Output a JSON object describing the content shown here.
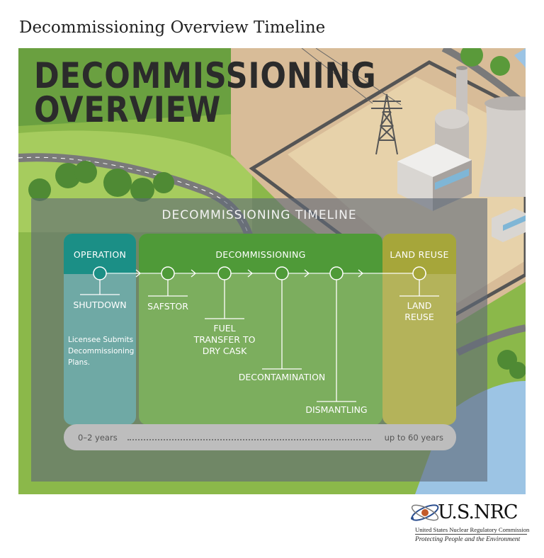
{
  "page_title": "Decommissioning Overview Timeline",
  "hero": {
    "line1": "DECOMMISSIONING",
    "line2": "OVERVIEW"
  },
  "timeline": {
    "title": "DECOMMISSIONING TIMELINE",
    "phases": {
      "operation": "OPERATION",
      "decommissioning": "DECOMMISSIONING",
      "land_reuse": "LAND REUSE"
    },
    "events": {
      "shutdown": "SHUTDOWN",
      "safstor": "SAFSTOR",
      "fuel_transfer_1": "FUEL",
      "fuel_transfer_2": "TRANSFER TO",
      "fuel_transfer_3": "DRY CASK",
      "decontamination": "DECONTAMINATION",
      "dismantling": "DISMANTLING",
      "land_reuse_1": "LAND",
      "land_reuse_2": "REUSE"
    },
    "note": {
      "line1": "Licensee Submits",
      "line2": "Decommissioning",
      "line3": "Plans."
    },
    "duration": {
      "start": "0–2 years",
      "end": "up to 60 years"
    }
  },
  "logo": {
    "name": "U.S.NRC",
    "agency": "United States Nuclear Regulatory Commission",
    "tagline": "Protecting People and the Environment"
  },
  "colors": {
    "operation": "#1b8f86",
    "decommissioning": "#4f9a38",
    "land_reuse": "#a6a63a",
    "grass": "#8bb84a",
    "water": "#9cc4e4"
  }
}
